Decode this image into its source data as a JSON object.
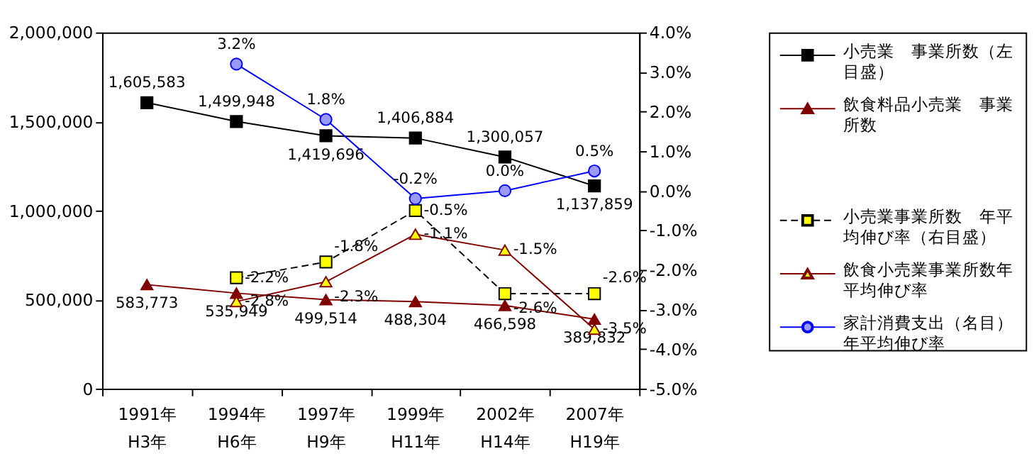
{
  "chart_data": {
    "type": "line",
    "categories": [
      "1991年\nH3年",
      "1994年\nH6年",
      "1997年\nH9年",
      "1999年\nH11年",
      "2002年\nH14年",
      "2007年\nH19年"
    ],
    "ylim": [
      0,
      2000000
    ],
    "yticks": [
      {
        "value": 0,
        "label": "0"
      },
      {
        "value": 500000,
        "label": "500,000"
      },
      {
        "value": 1000000,
        "label": "1,000,000"
      },
      {
        "value": 1500000,
        "label": "1,500,000"
      },
      {
        "value": 2000000,
        "label": "2,000,000"
      }
    ],
    "y2lim": [
      -5,
      4
    ],
    "y2ticks": [
      {
        "value": -5,
        "label": "-5.0%"
      },
      {
        "value": -4,
        "label": "-4.0%"
      },
      {
        "value": -3,
        "label": "-3.0%"
      },
      {
        "value": -2,
        "label": "-2.0%"
      },
      {
        "value": -1,
        "label": "-1.0%"
      },
      {
        "value": 0,
        "label": "0.0%"
      },
      {
        "value": 1,
        "label": "1.0%"
      },
      {
        "value": 2,
        "label": "2.0%"
      },
      {
        "value": 3,
        "label": "3.0%"
      },
      {
        "value": 4,
        "label": "4.0%"
      }
    ],
    "grid": false,
    "legend": "right",
    "data_labels": true,
    "series": [
      {
        "name": "小売業　事業所数（左目盛）",
        "color": "#000000",
        "marker": "square",
        "line_style": "solid",
        "values": [
          1605583,
          1499948,
          1419696,
          1406884,
          1300057,
          1137859
        ],
        "value_labels": [
          "1,605,583",
          "1,499,948",
          "1,419,696",
          "1,406,884",
          "1,300,057",
          "1,137,859"
        ]
      },
      {
        "name": "飲食料品小売業　事業所数",
        "color": "#800000",
        "marker": "triangle",
        "line_style": "solid",
        "values": [
          583773,
          535949,
          499514,
          488304,
          466598,
          389832
        ],
        "value_labels": [
          "583,773",
          "535,949",
          "499,514",
          "488,304",
          "466,598",
          "389,832"
        ]
      },
      {
        "name": "小売業事業所数　年平均伸び率（右目盛）",
        "color": "#000000",
        "marker": "square",
        "line_style": "dashed",
        "axis": "y2",
        "values": [
          null,
          -2.2,
          -1.8,
          -0.5,
          -2.6,
          -2.6
        ],
        "value_labels": [
          null,
          "-2.2%",
          "-1.8%",
          "-0.5%",
          "-2.6%",
          "-2.6%"
        ]
      },
      {
        "name": "飲食小売業事業所数年平均伸び率",
        "color": "#800000",
        "marker": "triangle",
        "line_style": "solid",
        "axis": "y2",
        "values": [
          null,
          -2.8,
          -2.3,
          -1.1,
          -1.5,
          -3.5
        ],
        "value_labels": [
          null,
          "-2.8%",
          "-2.3%",
          "-1.1%",
          "-1.5%",
          "-3.5%"
        ]
      },
      {
        "name": "家計消費支出（名目）年平均伸び率",
        "color": "#0000ff",
        "marker": "circle",
        "line_style": "solid",
        "axis": "y2",
        "values": [
          null,
          3.2,
          1.8,
          -0.2,
          0.0,
          0.5
        ],
        "value_labels": [
          null,
          "3.2%",
          "1.8%",
          "-0.2%",
          "0.0%",
          "0.5%"
        ]
      }
    ]
  }
}
